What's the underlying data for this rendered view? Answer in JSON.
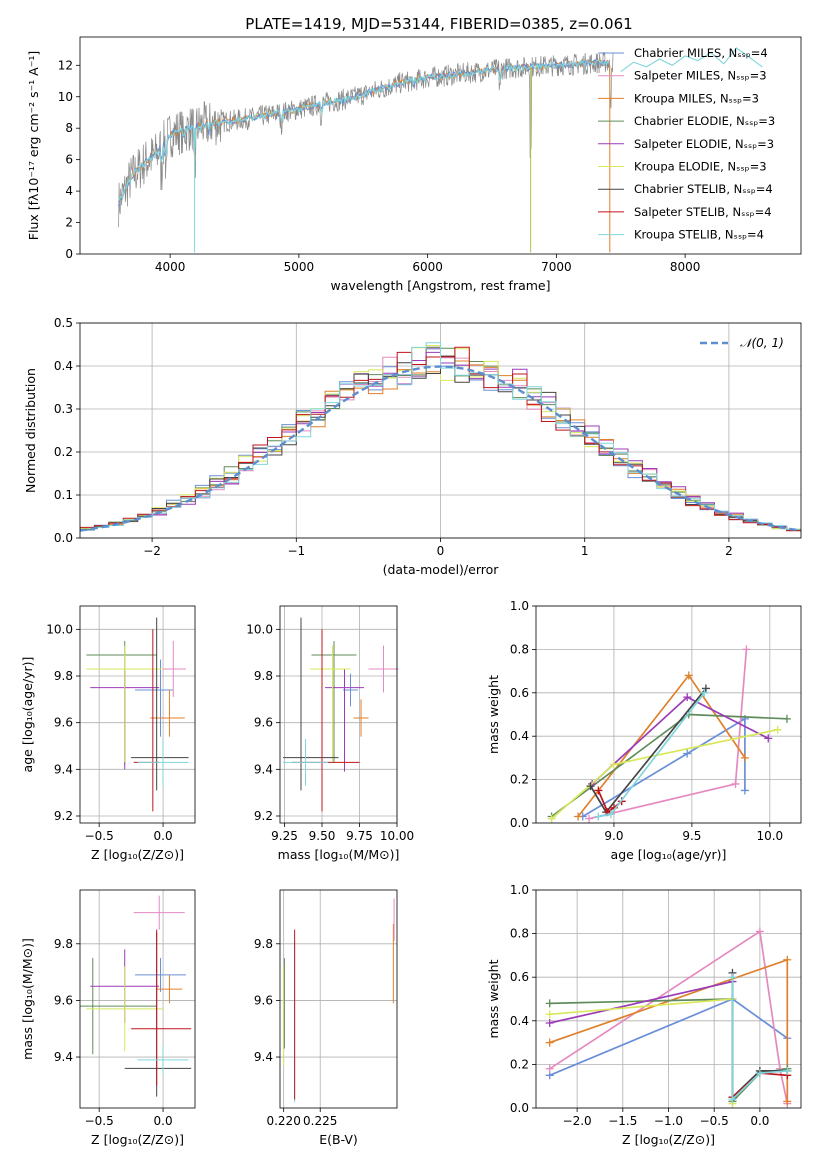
{
  "figure": {
    "title": "PLATE=1419, MJD=53144, FIBERID=0385, z=0.061"
  },
  "colors": {
    "Chabrier MILES": "#6a8fd8",
    "Salpeter MILES": "#e58ac0",
    "Kroupa MILES": "#e0802a",
    "Chabrier ELODIE": "#5f8c5a",
    "Salpeter ELODIE": "#9b3bb8",
    "Kroupa ELODIE": "#d8e85a",
    "Chabrier STELIB": "#444444",
    "Salpeter STELIB": "#c0141c",
    "Kroupa STELIB": "#7fd6dc",
    "data": "#888888",
    "gauss": "#5b8fd0"
  },
  "chart_data": [
    {
      "id": "spectrum",
      "type": "line",
      "title": "PLATE=1419, MJD=53144, FIBERID=0385, z=0.061",
      "xlabel": "wavelength [Angstrom, rest frame]",
      "ylabel": "Flux [fλ10⁻¹⁷ erg cm⁻² s⁻¹ A⁻¹]",
      "xlim": [
        3300,
        8900
      ],
      "ylim": [
        0,
        13.8
      ],
      "xticks": [
        4000,
        5000,
        6000,
        7000,
        8000
      ],
      "yticks": [
        0,
        2,
        4,
        6,
        8,
        10,
        12
      ],
      "grid": false,
      "legend_position": "top-right",
      "legend": [
        "Chabrier MILES, N_SSP=4",
        "Salpeter MILES, N_SSP=3",
        "Kroupa MILES, N_SSP=3",
        "Chabrier ELODIE, N_SSP=3",
        "Salpeter ELODIE, N_SSP=3",
        "Kroupa ELODIE, N_SSP=3",
        "Chabrier STELIB, N_SSP=4",
        "Salpeter STELIB, N_SSP=4",
        "Kroupa STELIB, N_SSP=4"
      ],
      "continuum_x": [
        3600,
        3700,
        3800,
        3900,
        4000,
        4200,
        4400,
        4600,
        4800,
        5000,
        5200,
        5400,
        5600,
        5800,
        6000,
        6200,
        6400,
        6600,
        6800,
        7000,
        7200,
        7400
      ],
      "continuum_y": [
        3.2,
        4.9,
        5.8,
        6.4,
        7.6,
        8.1,
        8.4,
        8.6,
        8.9,
        9.2,
        9.6,
        9.9,
        10.4,
        10.9,
        11.2,
        11.4,
        11.6,
        11.8,
        11.9,
        12.0,
        12.1,
        12.2
      ],
      "stelib_x": [
        7500,
        7600,
        7700,
        7800,
        7900,
        8000,
        8100,
        8200,
        8300,
        8400,
        8500,
        8600
      ],
      "stelib_y": [
        11.6,
        12.2,
        11.9,
        12.4,
        12.0,
        12.6,
        12.3,
        12.8,
        12.1,
        13.1,
        12.5,
        11.9
      ]
    },
    {
      "id": "residuals",
      "type": "bar",
      "xlabel": "(data-model)/error",
      "ylabel": "Normed distribution",
      "xlim": [
        -2.5,
        2.5
      ],
      "ylim": [
        0,
        0.5
      ],
      "xticks": [
        -2,
        -1,
        0,
        1,
        2
      ],
      "yticks": [
        0.0,
        0.1,
        0.2,
        0.3,
        0.4,
        0.5
      ],
      "grid": true,
      "legend_position": "top-right",
      "legend": [
        "𝒩(0, 1)"
      ],
      "bin_width": 0.1
    },
    {
      "id": "age-vs-Z",
      "type": "scatter",
      "xlabel": "Z [log₁₀(Z/Z⊙)]",
      "ylabel": "age  [log₁₀(age/yr)]",
      "xlim": [
        -0.65,
        0.25
      ],
      "ylim": [
        9.17,
        10.1
      ],
      "xticks": [
        -0.5,
        0.0
      ],
      "yticks": [
        9.2,
        9.4,
        9.6,
        9.8,
        10.0
      ],
      "grid": true,
      "points": [
        {
          "model": "Chabrier MILES",
          "x": -0.02,
          "y": 9.74,
          "xerr": [
            0.2,
            0.1
          ],
          "yerr": [
            0.2,
            0.13
          ]
        },
        {
          "model": "Salpeter MILES",
          "x": 0.08,
          "y": 9.83,
          "xerr": [
            0.2,
            0.1
          ],
          "yerr": [
            0.12,
            0.12
          ]
        },
        {
          "model": "Kroupa MILES",
          "x": 0.05,
          "y": 9.62,
          "xerr": [
            0.15,
            0.12
          ],
          "yerr": [
            0.08,
            0.12
          ]
        },
        {
          "model": "Chabrier ELODIE",
          "x": -0.3,
          "y": 9.89,
          "xerr": [
            0.3,
            0.25
          ],
          "yerr": [
            0.47,
            0.06
          ]
        },
        {
          "model": "Salpeter ELODIE",
          "x": -0.3,
          "y": 9.75,
          "xerr": [
            0.27,
            0.27
          ],
          "yerr": [
            0.35,
            0.08
          ]
        },
        {
          "model": "Kroupa ELODIE",
          "x": -0.3,
          "y": 9.83,
          "xerr": [
            0.3,
            0.3
          ],
          "yerr": [
            0.4,
            0.1
          ]
        },
        {
          "model": "Chabrier STELIB",
          "x": -0.05,
          "y": 9.45,
          "xerr": [
            0.2,
            0.25
          ],
          "yerr": [
            0.14,
            0.6
          ]
        },
        {
          "model": "Salpeter STELIB",
          "x": -0.08,
          "y": 9.43,
          "xerr": [
            0.15,
            0.05
          ],
          "yerr": [
            0.21,
            0.57
          ]
        },
        {
          "model": "Kroupa STELIB",
          "x": 0.0,
          "y": 9.43,
          "xerr": [
            0.2,
            0.2
          ],
          "yerr": [
            0.1,
            0.1
          ]
        }
      ]
    },
    {
      "id": "age-vs-mass",
      "type": "scatter",
      "xlabel": "mass [log₁₀(M/M⊙)]",
      "ylabel": "",
      "xlim": [
        9.22,
        10.0
      ],
      "ylim": [
        9.17,
        10.1
      ],
      "xticks": [
        9.25,
        9.5,
        9.75,
        10.0
      ],
      "yticks": [
        9.2,
        9.4,
        9.6,
        9.8,
        10.0
      ],
      "grid": true,
      "points": [
        {
          "model": "Chabrier MILES",
          "x": 9.69,
          "y": 9.74,
          "xerr": [
            0.05,
            0.05
          ],
          "yerr": [
            0.07,
            0.07
          ]
        },
        {
          "model": "Salpeter MILES",
          "x": 9.91,
          "y": 9.83,
          "xerr": [
            0.1,
            0.1
          ],
          "yerr": [
            0.1,
            0.1
          ]
        },
        {
          "model": "Kroupa MILES",
          "x": 9.76,
          "y": 9.62,
          "xerr": [
            0.05,
            0.05
          ],
          "yerr": [
            0.08,
            0.08
          ]
        },
        {
          "model": "Chabrier ELODIE",
          "x": 9.58,
          "y": 9.89,
          "xerr": [
            0.15,
            0.15
          ],
          "yerr": [
            0.46,
            0.06
          ]
        },
        {
          "model": "Salpeter ELODIE",
          "x": 9.65,
          "y": 9.75,
          "xerr": [
            0.13,
            0.13
          ],
          "yerr": [
            0.36,
            0.08
          ]
        },
        {
          "model": "Kroupa ELODIE",
          "x": 9.57,
          "y": 9.83,
          "xerr": [
            0.15,
            0.12
          ],
          "yerr": [
            0.4,
            0.1
          ]
        },
        {
          "model": "Chabrier STELIB",
          "x": 9.36,
          "y": 9.45,
          "xerr": [
            0.12,
            0.25
          ],
          "yerr": [
            0.14,
            0.6
          ]
        },
        {
          "model": "Salpeter STELIB",
          "x": 9.5,
          "y": 9.43,
          "xerr": [
            0.2,
            0.25
          ],
          "yerr": [
            0.21,
            0.57
          ]
        },
        {
          "model": "Kroupa STELIB",
          "x": 9.39,
          "y": 9.43,
          "xerr": [
            0.15,
            0.15
          ],
          "yerr": [
            0.1,
            0.1
          ]
        }
      ]
    },
    {
      "id": "weight-vs-age",
      "type": "line",
      "xlabel": "age  [log₁₀(age/yr)]",
      "ylabel": "mass weight",
      "xlim": [
        8.5,
        10.2
      ],
      "ylim": [
        0,
        1.0
      ],
      "xticks": [
        9.0,
        9.5,
        10.0
      ],
      "yticks": [
        0.0,
        0.2,
        0.4,
        0.6,
        0.8,
        1.0
      ],
      "grid": true,
      "series": [
        {
          "model": "Chabrier MILES",
          "x": [
            8.8,
            9.47,
            9.84,
            9.84
          ],
          "y": [
            0.03,
            0.32,
            0.48,
            0.15
          ]
        },
        {
          "model": "Salpeter MILES",
          "x": [
            8.84,
            9.78,
            9.85
          ],
          "y": [
            0.02,
            0.18,
            0.8
          ]
        },
        {
          "model": "Kroupa MILES",
          "x": [
            8.77,
            9.48,
            9.84
          ],
          "y": [
            0.03,
            0.68,
            0.3
          ]
        },
        {
          "model": "Chabrier ELODIE",
          "x": [
            8.6,
            9.48,
            10.11
          ],
          "y": [
            0.03,
            0.5,
            0.48
          ]
        },
        {
          "model": "Salpeter ELODIE",
          "x": [
            8.86,
            9.47,
            9.99
          ],
          "y": [
            0.18,
            0.58,
            0.39
          ]
        },
        {
          "model": "Kroupa ELODIE",
          "x": [
            8.6,
            9.0,
            10.05
          ],
          "y": [
            0.02,
            0.27,
            0.43
          ]
        },
        {
          "model": "Chabrier STELIB",
          "x": [
            8.85,
            8.95,
            9.59
          ],
          "y": [
            0.17,
            0.05,
            0.62
          ]
        },
        {
          "model": "Salpeter STELIB",
          "x": [
            8.9,
            8.96,
            9.0,
            9.05
          ],
          "y": [
            0.15,
            0.05,
            0.07,
            0.1
          ]
        },
        {
          "model": "Kroupa STELIB",
          "x": [
            8.9,
            8.98,
            9.58
          ],
          "y": [
            0.03,
            0.04,
            0.6
          ]
        }
      ]
    },
    {
      "id": "mass-vs-Z",
      "type": "scatter",
      "xlabel": "Z [log₁₀(Z/Z⊙)]",
      "ylabel": "mass [log₁₀(M/M⊙)]",
      "xlim": [
        -0.65,
        0.25
      ],
      "ylim": [
        9.22,
        9.99
      ],
      "xticks": [
        -0.5,
        0.0
      ],
      "yticks": [
        9.4,
        9.6,
        9.8
      ],
      "grid": true,
      "points": [
        {
          "model": "Chabrier MILES",
          "x": -0.02,
          "y": 9.69,
          "xerr": [
            0.2,
            0.2
          ],
          "yerr": [
            0.06,
            0.06
          ]
        },
        {
          "model": "Salpeter MILES",
          "x": -0.03,
          "y": 9.91,
          "xerr": [
            0.2,
            0.2
          ],
          "yerr": [
            0.06,
            0.06
          ]
        },
        {
          "model": "Kroupa MILES",
          "x": 0.05,
          "y": 9.64,
          "xerr": [
            0.1,
            0.1
          ],
          "yerr": [
            0.05,
            0.05
          ]
        },
        {
          "model": "Chabrier ELODIE",
          "x": -0.55,
          "y": 9.58,
          "xerr": [
            0.1,
            0.5
          ],
          "yerr": [
            0.17,
            0.17
          ]
        },
        {
          "model": "Salpeter ELODIE",
          "x": -0.3,
          "y": 9.65,
          "xerr": [
            0.27,
            0.27
          ],
          "yerr": [
            0.13,
            0.13
          ]
        },
        {
          "model": "Kroupa ELODIE",
          "x": -0.3,
          "y": 9.57,
          "xerr": [
            0.3,
            0.3
          ],
          "yerr": [
            0.15,
            0.15
          ]
        },
        {
          "model": "Chabrier STELIB",
          "x": -0.05,
          "y": 9.36,
          "xerr": [
            0.25,
            0.27
          ],
          "yerr": [
            0.1,
            0.48
          ]
        },
        {
          "model": "Salpeter STELIB",
          "x": -0.05,
          "y": 9.5,
          "xerr": [
            0.2,
            0.27
          ],
          "yerr": [
            0.2,
            0.35
          ]
        },
        {
          "model": "Kroupa STELIB",
          "x": 0.0,
          "y": 9.39,
          "xerr": [
            0.2,
            0.2
          ],
          "yerr": [
            0.05,
            0.05
          ]
        }
      ]
    },
    {
      "id": "mass-vs-ebv",
      "type": "scatter",
      "xlabel": "E(B-V)",
      "ylabel": "",
      "xlim": [
        0.2195,
        0.2355
      ],
      "ylim": [
        9.22,
        9.99
      ],
      "xticks": [
        0.22,
        0.225
      ],
      "yticks": [
        9.4,
        9.6,
        9.8
      ],
      "grid": true,
      "points": [
        {
          "model": "Kroupa ELODIE",
          "x": 0.22,
          "y": 9.57,
          "yerr": [
            0.2,
            0.15
          ]
        },
        {
          "model": "Chabrier ELODIE",
          "x": 0.2201,
          "y": 9.58,
          "yerr": [
            0.15,
            0.17
          ]
        },
        {
          "model": "Kroupa STELIB",
          "x": 0.2215,
          "y": 9.39,
          "yerr": [
            0.15,
            0.42
          ]
        },
        {
          "model": "Salpeter STELIB",
          "x": 0.2215,
          "y": 9.5,
          "yerr": [
            0.25,
            0.35
          ]
        },
        {
          "model": "Kroupa MILES",
          "x": 0.235,
          "y": 9.77,
          "yerr": [
            0.18,
            0.1
          ]
        },
        {
          "model": "Salpeter MILES",
          "x": 0.2351,
          "y": 9.91,
          "yerr": [
            0.1,
            0.05
          ]
        }
      ]
    },
    {
      "id": "weight-vs-Z",
      "type": "line",
      "xlabel": "Z [log₁₀(Z/Z⊙)]",
      "ylabel": "mass weight",
      "xlim": [
        -2.45,
        0.45
      ],
      "ylim": [
        0,
        1.0
      ],
      "xticks": [
        -2.0,
        -1.5,
        -1.0,
        -0.5,
        0.0
      ],
      "yticks": [
        0.0,
        0.2,
        0.4,
        0.6,
        0.8,
        1.0
      ],
      "grid": true,
      "series": [
        {
          "model": "Chabrier MILES",
          "x": [
            -2.3,
            -0.3,
            0.3
          ],
          "y": [
            0.15,
            0.5,
            0.32
          ]
        },
        {
          "model": "Salpeter MILES",
          "x": [
            -2.3,
            0.0,
            0.22,
            0.3
          ],
          "y": [
            0.18,
            0.81,
            0.18,
            0.02
          ]
        },
        {
          "model": "Kroupa MILES",
          "x": [
            -2.3,
            0.3,
            0.3
          ],
          "y": [
            0.3,
            0.68,
            0.03
          ]
        },
        {
          "model": "Chabrier ELODIE",
          "x": [
            -2.3,
            -0.3,
            -0.3,
            0.0,
            0.3
          ],
          "y": [
            0.48,
            0.5,
            0.03,
            0.16,
            0.18
          ]
        },
        {
          "model": "Salpeter ELODIE",
          "x": [
            -2.3,
            -0.3
          ],
          "y": [
            0.39,
            0.58
          ]
        },
        {
          "model": "Kroupa ELODIE",
          "x": [
            -2.3,
            -0.3,
            -0.3
          ],
          "y": [
            0.43,
            0.5,
            0.02
          ]
        },
        {
          "model": "Chabrier STELIB",
          "x": [
            -0.3,
            -0.3,
            0.0,
            0.3
          ],
          "y": [
            0.62,
            0.05,
            0.17,
            0.17
          ]
        },
        {
          "model": "Salpeter STELIB",
          "x": [
            -0.3,
            0.0,
            0.3
          ],
          "y": [
            0.05,
            0.16,
            0.15
          ]
        },
        {
          "model": "Kroupa STELIB",
          "x": [
            -0.3,
            -0.3,
            0.0,
            0.3
          ],
          "y": [
            0.6,
            0.04,
            0.16,
            0.17
          ]
        }
      ]
    }
  ]
}
